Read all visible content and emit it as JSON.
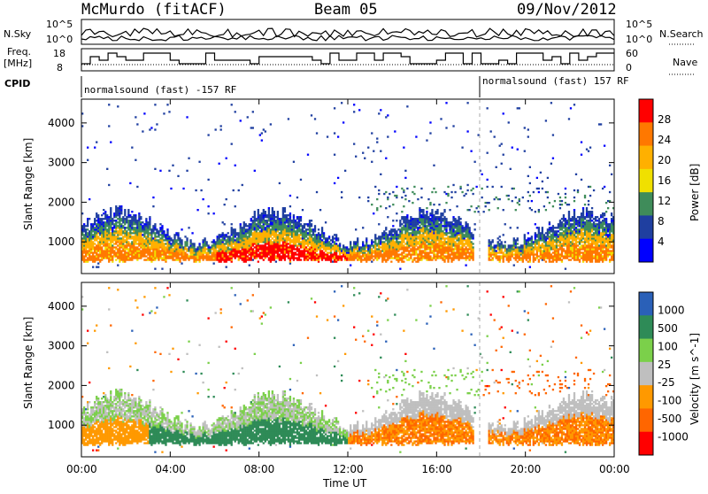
{
  "header": {
    "station": "McMurdo (fitACF)",
    "beam": "Beam 05",
    "date": "09/Nov/2012"
  },
  "top_panels": {
    "nsky_label": "N.Sky",
    "nsky_ticks": [
      "10^5",
      "10^0"
    ],
    "nsearch_label": "N.Search",
    "nsearch_ticks": [
      "10^5",
      "10^0"
    ],
    "freq_label_1": "Freq.",
    "freq_label_2": "[MHz]",
    "freq_ticks": [
      "18",
      "8"
    ],
    "nave_label": "Nave",
    "nave_ticks": [
      "60",
      "0"
    ],
    "cpid_label": "CPID",
    "cpid_segments": [
      {
        "text": "normalsound (fast) -157 RF",
        "start_hour": 0
      },
      {
        "text": "normalsound (fast) 157 RF",
        "start_hour": 18.1
      }
    ]
  },
  "time_axis": {
    "ticks": [
      "00:00",
      "04:00",
      "08:00",
      "12:00",
      "16:00",
      "20:00",
      "00:00"
    ],
    "label": "Time UT"
  },
  "colors": {
    "power": [
      "#0000ff",
      "#1f3fa0",
      "#3f8c5a",
      "#f0e000",
      "#ffb000",
      "#ff7800",
      "#ff0000"
    ],
    "velocity": [
      "#ff0000",
      "#ff6600",
      "#ff9900",
      "#bfbfbf",
      "#7bd04a",
      "#2e8b57",
      "#2a60b8"
    ]
  },
  "chart_data": [
    {
      "type": "heatmap",
      "title": "",
      "xlabel": "Time UT",
      "ylabel": "Slant Range [km]",
      "xlim_hours": [
        0,
        24
      ],
      "ylim_km": [
        200,
        4600
      ],
      "y_ticks": [
        "4000",
        "3000",
        "2000",
        "1000"
      ],
      "colorbar": {
        "label": "Power [dB]",
        "ticks": [
          "28",
          "24",
          "20",
          "16",
          "12",
          "8",
          "4"
        ],
        "range": [
          0,
          30
        ]
      },
      "description_bands": [
        {
          "from_hour": 0,
          "to_hour": 18,
          "range_km": [
            500,
            1600
          ],
          "peak_power_db": 30
        },
        {
          "from_hour": 18,
          "to_hour": 24,
          "range_km": [
            500,
            1500
          ],
          "peak_power_db": 24
        }
      ]
    },
    {
      "type": "heatmap",
      "title": "",
      "xlabel": "Time UT",
      "ylabel": "Slant Range [km]",
      "xlim_hours": [
        0,
        24
      ],
      "ylim_km": [
        200,
        4600
      ],
      "y_ticks": [
        "4000",
        "3000",
        "2000",
        "1000"
      ],
      "colorbar": {
        "label": "Velocity [m s^-1]",
        "ticks": [
          "1000",
          "500",
          "100",
          "25",
          "-25",
          "-100",
          "-500",
          "-1000"
        ],
        "range": [
          -1000,
          1000
        ]
      }
    }
  ]
}
